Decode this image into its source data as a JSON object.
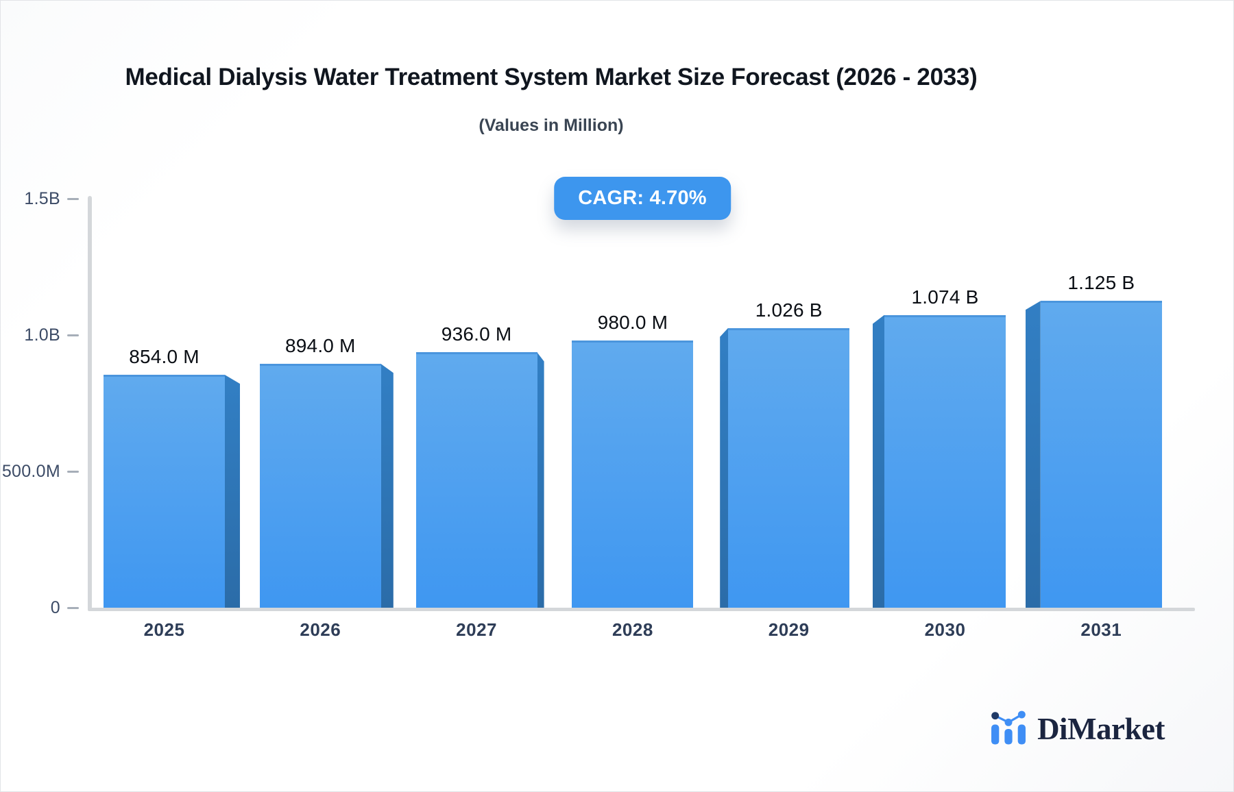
{
  "header": {
    "title": "Medical Dialysis Water Treatment System Market Size Forecast (2026 - 2033)",
    "subtitle": "(Values in Million)",
    "cagr_label": "CAGR: 4.70%"
  },
  "branding": {
    "logo_text": "DiMarket",
    "logo_icon": "bar-line-chart-icon"
  },
  "chart_data": {
    "type": "bar",
    "title": "Medical Dialysis Water Treatment System Market Size Forecast (2026 - 2033)",
    "subtitle": "(Values in Million)",
    "annotation": "CAGR: 4.70%",
    "categories": [
      "2025",
      "2026",
      "2027",
      "2028",
      "2029",
      "2030",
      "2031"
    ],
    "values_millions": [
      854,
      894,
      936,
      980,
      1026,
      1074,
      1125
    ],
    "value_labels": [
      "854.0 M",
      "894.0 M",
      "936.0 M",
      "980.0 M",
      "1.026 B",
      "1.074 B",
      "1.125 B"
    ],
    "xlabel": "",
    "ylabel": "",
    "ylim": [
      0,
      1500
    ],
    "y_ticks": [
      {
        "label": "0",
        "value": 0
      },
      {
        "label": "500.0M",
        "value": 500
      },
      {
        "label": "1.0B",
        "value": 1000
      },
      {
        "label": "1.5B",
        "value": 1500
      }
    ],
    "grid": false,
    "legend": "none",
    "bar_style": "3d-perspective"
  },
  "colors": {
    "title_color": "#10161f",
    "subtitle_color": "#3a4553",
    "badge_bg": "#3d96ee",
    "bar_face_top": "#60aaee",
    "bar_face_bottom": "#3f97f1",
    "bar_top_edge": "#4a95dd",
    "bar_side_top": "#327fc4",
    "bar_side_bottom": "#2b6ca8",
    "axis_color": "#d4d7da",
    "dash_color": "#a6aeb8",
    "tick_color": "#3c4b66",
    "year_color": "#2e3d57",
    "value_color": "#0a0e14",
    "logo_text_color": "#1b2540",
    "logo_icon_blue": "#3f8ef5",
    "logo_icon_dark": "#203a66"
  }
}
